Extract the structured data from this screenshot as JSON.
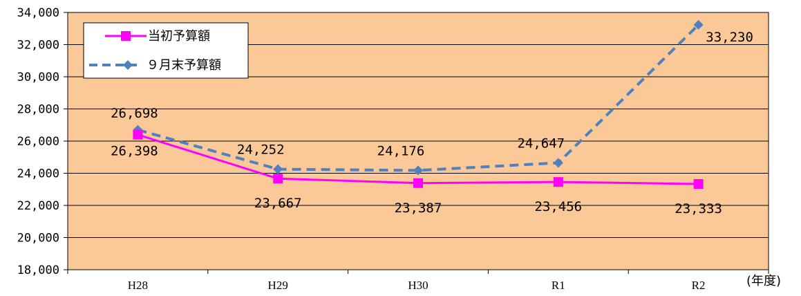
{
  "chart_data": {
    "type": "line",
    "categories": [
      "H28",
      "H29",
      "H30",
      "R1",
      "R2"
    ],
    "xlabel": "(年度)",
    "ylim": [
      18000,
      34000
    ],
    "ytick_step": 2000,
    "yticks": [
      "18,000",
      "20,000",
      "22,000",
      "24,000",
      "26,000",
      "28,000",
      "30,000",
      "32,000",
      "34,000"
    ],
    "grid": true,
    "legend": "top-left",
    "plot_background": "#FBC898",
    "series": [
      {
        "name": "当初予算額",
        "values": [
          26398,
          23667,
          23387,
          23456,
          23333
        ],
        "labels": [
          "26,398",
          "23,667",
          "23,387",
          "23,456",
          "23,333"
        ],
        "color": "#FF00FF",
        "marker": "square",
        "line_style": "solid"
      },
      {
        "name": "９月末予算額",
        "values": [
          26698,
          24252,
          24176,
          24647,
          33230
        ],
        "labels": [
          "26,698",
          "24,252",
          "24,176",
          "24,647",
          "33,230"
        ],
        "color": "#4F81BD",
        "marker": "diamond",
        "line_style": "dashed"
      }
    ]
  }
}
